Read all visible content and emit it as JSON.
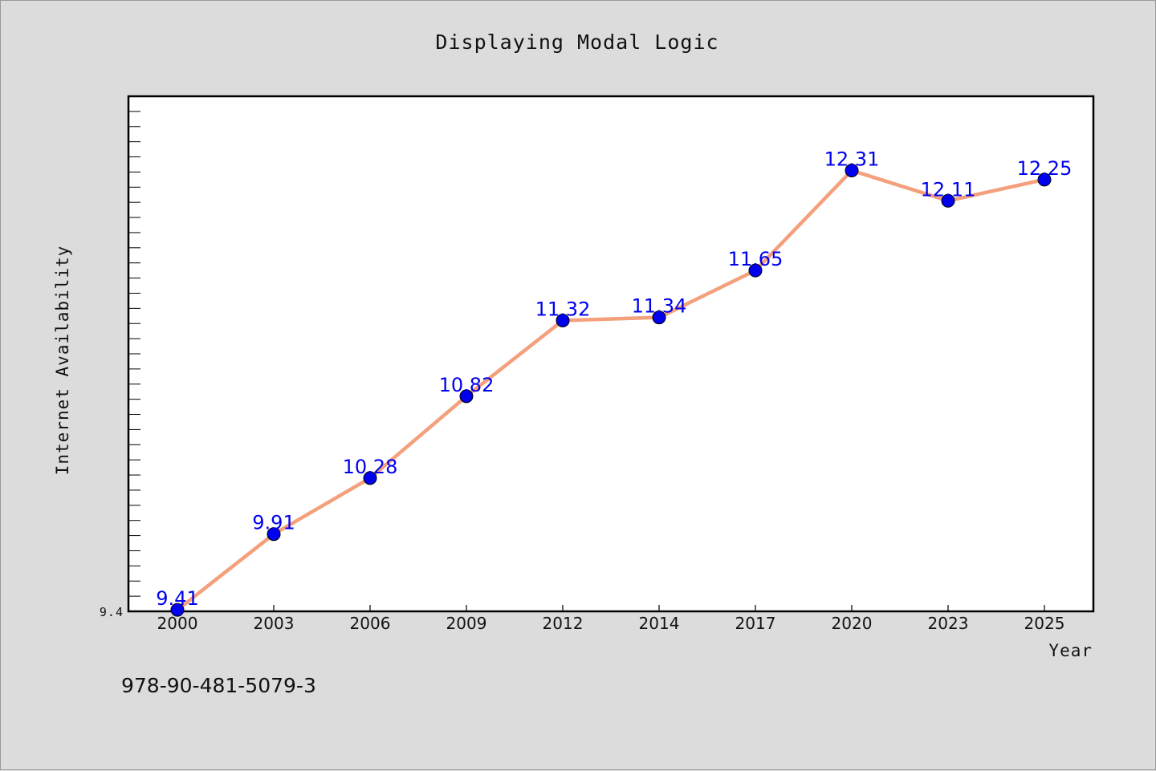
{
  "chart_data": {
    "type": "line",
    "title": "Displaying Modal Logic",
    "xlabel": "Year",
    "ylabel": "Internet Availability",
    "categories": [
      "2000",
      "2003",
      "2006",
      "2009",
      "2012",
      "2014",
      "2017",
      "2020",
      "2023",
      "2025"
    ],
    "series": [
      {
        "values": [
          9.41,
          9.91,
          10.28,
          10.82,
          11.32,
          11.34,
          11.65,
          12.31,
          12.11,
          12.25
        ],
        "labels": [
          "9.41",
          "9.91",
          "10.28",
          "10.82",
          "11.32",
          "11.34",
          "11.65",
          "12.31",
          "12.11",
          "12.25"
        ],
        "line_color": "#f4a07c",
        "marker_color": "#0000ee",
        "label_color": "#0000ee"
      }
    ],
    "ylim": [
      9.4,
      12.8
    ],
    "yticks_labeled": [
      "9.4"
    ],
    "grid": false,
    "legend": "none"
  },
  "footer": {
    "code": "978-90-481-5079-3"
  }
}
